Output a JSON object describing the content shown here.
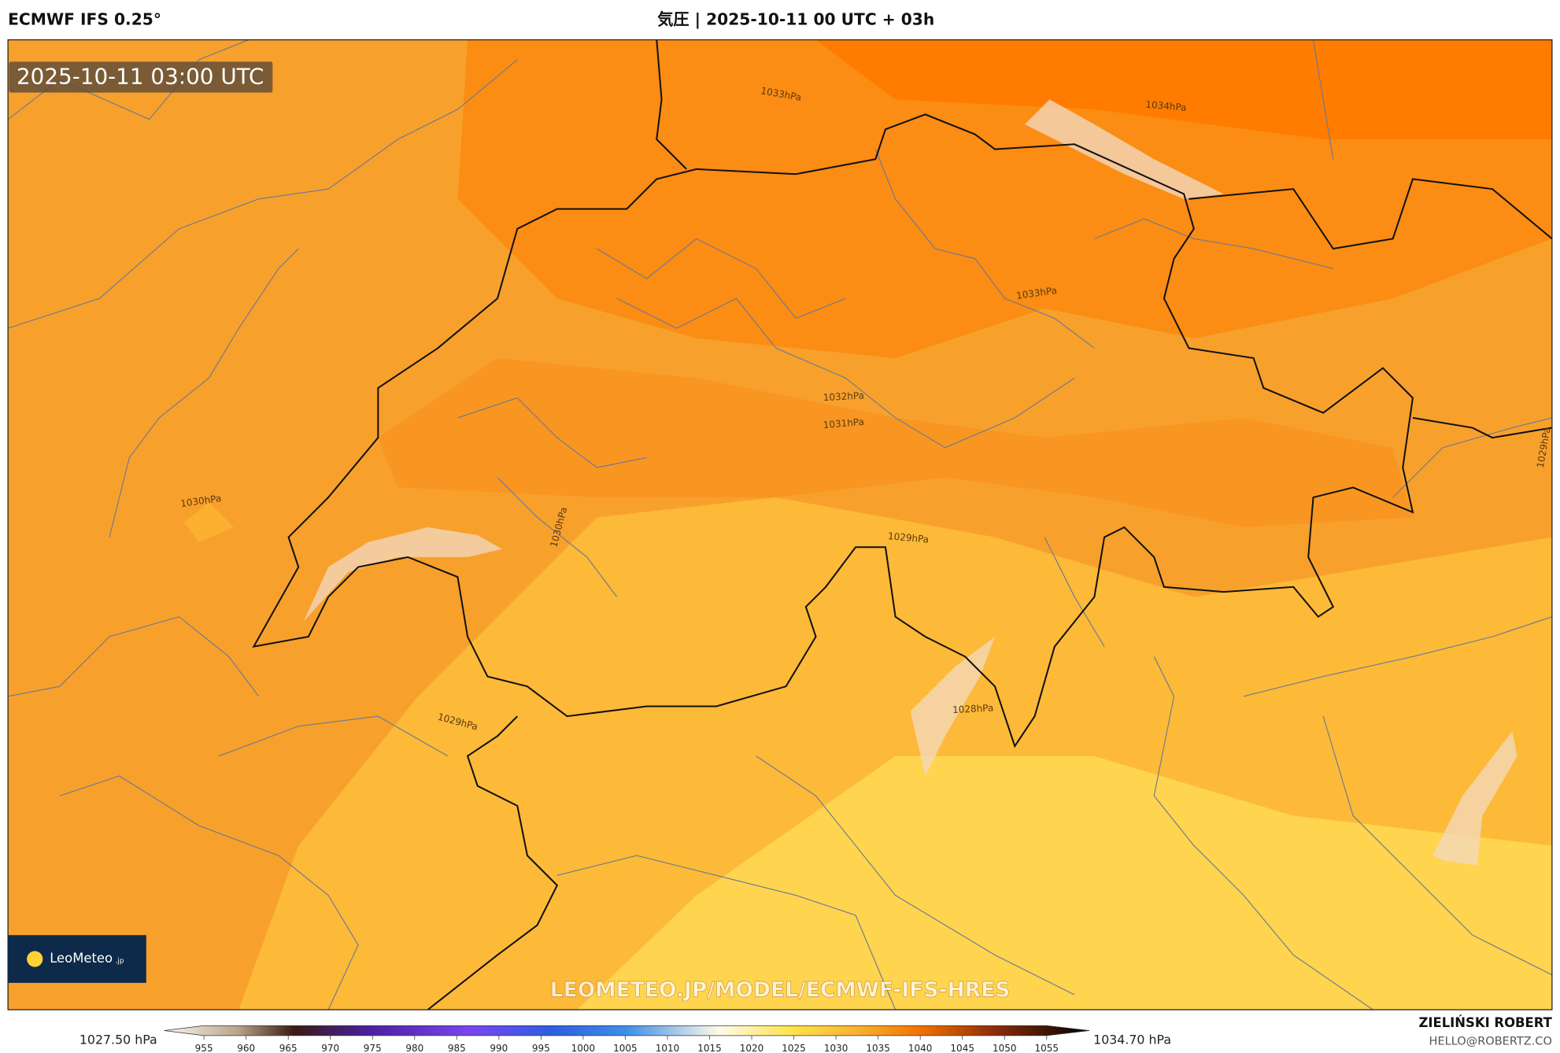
{
  "header": {
    "model": "ECMWF IFS 0.25°",
    "title": "気圧 | 2025-10-11 00 UTC + 03h"
  },
  "map": {
    "timestamp": "2025-10-11 03:00 UTC",
    "contour_labels": [
      "1033hPa",
      "1034hPa",
      "1033hPa",
      "1032hPa",
      "1031hPa",
      "1030hPa",
      "1030hPa",
      "1029hPa",
      "1028hPa",
      "1029hPa",
      "1029hPa"
    ],
    "watermark": "LEOMETEO.JP/MODEL/ECMWF-IFS-HRES",
    "logo": {
      "name": "LeoMeteo",
      "suffix": ".jp"
    }
  },
  "colorbar": {
    "min_label": "1027.50 hPa",
    "max_label": "1034.70 hPa",
    "ticks": [
      955,
      960,
      965,
      970,
      975,
      980,
      985,
      990,
      995,
      1000,
      1005,
      1010,
      1015,
      1020,
      1025,
      1030,
      1035,
      1040,
      1045,
      1050,
      1055
    ]
  },
  "credit": {
    "author": "ZIELIŃSKI ROBERT",
    "email": "HELLO@ROBERTZ.CO"
  }
}
